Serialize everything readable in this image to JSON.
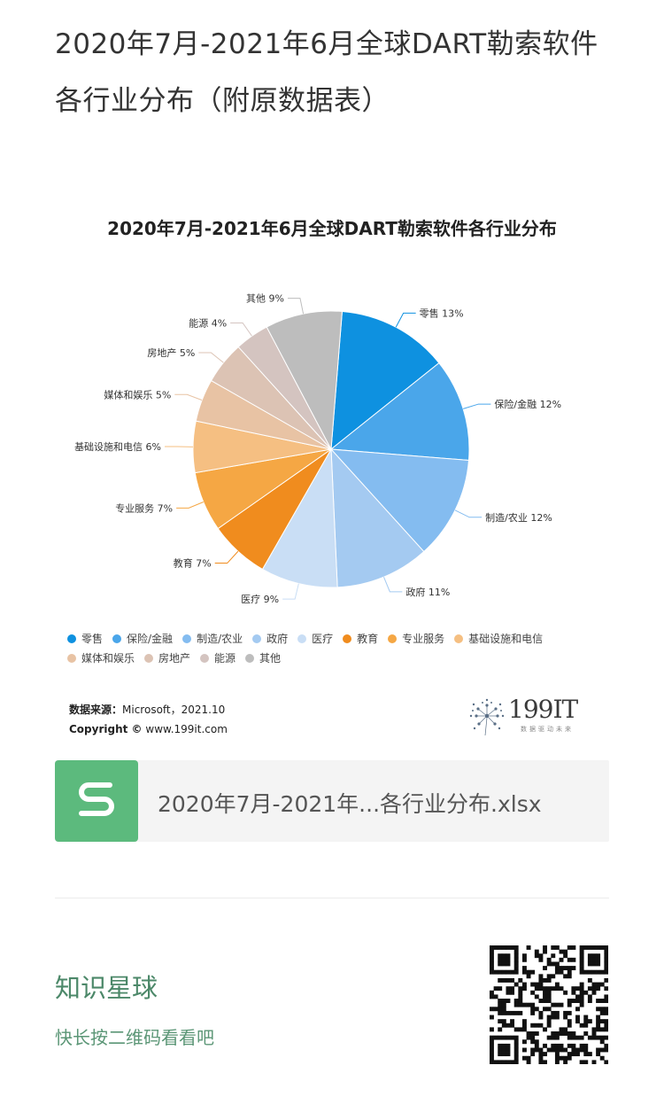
{
  "post": {
    "title": "2020年7月-2021年6月全球DART勒索软件各行业分布（附原数据表）"
  },
  "chart_data": {
    "type": "pie",
    "title": "2020年7月-2021年6月全球DART勒索软件各行业分布",
    "unit": "%",
    "categories": [
      "零售",
      "保险/金融",
      "制造/农业",
      "政府",
      "医疗",
      "教育",
      "专业服务",
      "基础设施和电信",
      "媒体和娱乐",
      "房地产",
      "能源",
      "其他"
    ],
    "values": [
      13,
      12,
      12,
      11,
      9,
      7,
      7,
      6,
      5,
      5,
      4,
      9
    ],
    "labels": [
      "零售 13%",
      "保险/金融 12%",
      "制造/农业 12%",
      "政府 11%",
      "医疗 9%",
      "教育 7%",
      "专业服务 7%",
      "基础设施和电信 6%",
      "媒体和娱乐 5%",
      "房地产 5%",
      "能源 4%",
      "其他 9%"
    ],
    "colors": [
      "#0e91e0",
      "#4aa6ea",
      "#84bcf0",
      "#a4caf1",
      "#c9def5",
      "#f08c1e",
      "#f5a744",
      "#f5bf82",
      "#e8c3a4",
      "#dcc3b4",
      "#d4c4c0",
      "#bdbdbd"
    ],
    "legend_position": "bottom"
  },
  "source": {
    "label": "数据来源：",
    "value": "Microsoft，2021.10",
    "copyright_label": "Copyright ©",
    "copyright_value": "www.199it.com"
  },
  "brand": {
    "name": "199IT",
    "slogan": "数据驱动未来"
  },
  "file": {
    "icon_letter": "S",
    "name": "2020年7月-2021年...各行业分布.xlsx"
  },
  "promo": {
    "title": "知识星球",
    "subtitle": "快长按二维码看看吧"
  }
}
